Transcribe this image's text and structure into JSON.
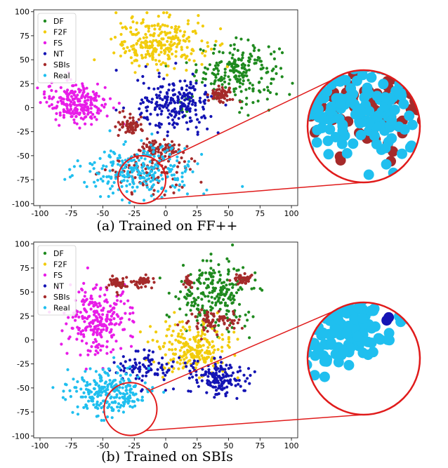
{
  "chart_data": [
    {
      "type": "scatter",
      "title": "",
      "caption": "(a) Trained on FF++",
      "xlabel": "",
      "ylabel": "",
      "xlim": [
        -105,
        105
      ],
      "ylim": [
        -102,
        102
      ],
      "xticks": [
        -100,
        -75,
        -50,
        -25,
        0,
        25,
        50,
        75,
        100
      ],
      "yticks": [
        100,
        75,
        50,
        25,
        0,
        -25,
        -50,
        -75,
        -100
      ],
      "grid": false,
      "legend_position": "top-left",
      "series": [
        {
          "name": "DF",
          "color": "#1f8a1f",
          "clusters": [
            {
              "cx": 58,
              "cy": 38,
              "rx": 33,
              "ry": 30,
              "n": 210
            },
            {
              "cx": 15,
              "cy": 3,
              "rx": 10,
              "ry": 10,
              "n": 12
            }
          ]
        },
        {
          "name": "F2F",
          "color": "#f2cc0c",
          "clusters": [
            {
              "cx": -5,
              "cy": 67,
              "rx": 36,
              "ry": 27,
              "n": 260
            }
          ]
        },
        {
          "name": "FS",
          "color": "#e81ce8",
          "clusters": [
            {
              "cx": -70,
              "cy": 6,
              "rx": 25,
              "ry": 22,
              "n": 230
            }
          ]
        },
        {
          "name": "NT",
          "color": "#1414b4",
          "clusters": [
            {
              "cx": 8,
              "cy": 2,
              "rx": 30,
              "ry": 28,
              "n": 220
            }
          ]
        },
        {
          "name": "SBIs",
          "color": "#a52a2a",
          "clusters": [
            {
              "cx": 44,
              "cy": 13,
              "rx": 9,
              "ry": 8,
              "n": 60
            },
            {
              "cx": -28,
              "cy": -18,
              "rx": 10,
              "ry": 11,
              "n": 60
            },
            {
              "cx": -5,
              "cy": -42,
              "rx": 18,
              "ry": 10,
              "n": 70
            },
            {
              "cx": -12,
              "cy": -66,
              "rx": 38,
              "ry": 22,
              "n": 110
            }
          ]
        },
        {
          "name": "Real",
          "color": "#1fbfef",
          "clusters": [
            {
              "cx": -20,
              "cy": -65,
              "rx": 45,
              "ry": 25,
              "n": 260
            }
          ]
        }
      ],
      "highlight_circle": {
        "cx": -19,
        "cy": -75,
        "r": 19
      }
    },
    {
      "type": "scatter",
      "title": "",
      "caption": "(b) Trained on SBIs",
      "xlabel": "",
      "ylabel": "",
      "xlim": [
        -105,
        105
      ],
      "ylim": [
        -102,
        102
      ],
      "xticks": [
        -100,
        -75,
        -50,
        -25,
        0,
        25,
        50,
        75,
        100
      ],
      "yticks": [
        100,
        75,
        50,
        25,
        0,
        -25,
        -50,
        -75,
        -100
      ],
      "grid": false,
      "legend_position": "top-left",
      "series": [
        {
          "name": "DF",
          "color": "#1f8a1f",
          "clusters": [
            {
              "cx": 38,
              "cy": 48,
              "rx": 30,
              "ry": 38,
              "n": 230
            }
          ]
        },
        {
          "name": "F2F",
          "color": "#f2cc0c",
          "clusters": [
            {
              "cx": 22,
              "cy": -8,
              "rx": 30,
              "ry": 25,
              "n": 230
            }
          ]
        },
        {
          "name": "FS",
          "color": "#e81ce8",
          "clusters": [
            {
              "cx": -55,
              "cy": 20,
              "rx": 25,
              "ry": 38,
              "n": 250
            }
          ]
        },
        {
          "name": "NT",
          "color": "#1414b4",
          "clusters": [
            {
              "cx": 42,
              "cy": -40,
              "rx": 20,
              "ry": 18,
              "n": 150
            },
            {
              "cx": -15,
              "cy": -30,
              "rx": 25,
              "ry": 18,
              "n": 90
            }
          ]
        },
        {
          "name": "SBIs",
          "color": "#a52a2a",
          "clusters": [
            {
              "cx": -38,
              "cy": 58,
              "rx": 10,
              "ry": 7,
              "n": 55
            },
            {
              "cx": -17,
              "cy": 62,
              "rx": 8,
              "ry": 6,
              "n": 45
            },
            {
              "cx": 62,
              "cy": 64,
              "rx": 8,
              "ry": 5,
              "n": 40
            },
            {
              "cx": 18,
              "cy": 60,
              "rx": 5,
              "ry": 6,
              "n": 20
            },
            {
              "cx": 38,
              "cy": 20,
              "rx": 18,
              "ry": 12,
              "n": 70
            }
          ]
        },
        {
          "name": "Real",
          "color": "#1fbfef",
          "clusters": [
            {
              "cx": -45,
              "cy": -55,
              "rx": 30,
              "ry": 25,
              "n": 260
            }
          ]
        }
      ],
      "highlight_circle": {
        "cx": -28,
        "cy": -72,
        "r": 21
      }
    }
  ]
}
